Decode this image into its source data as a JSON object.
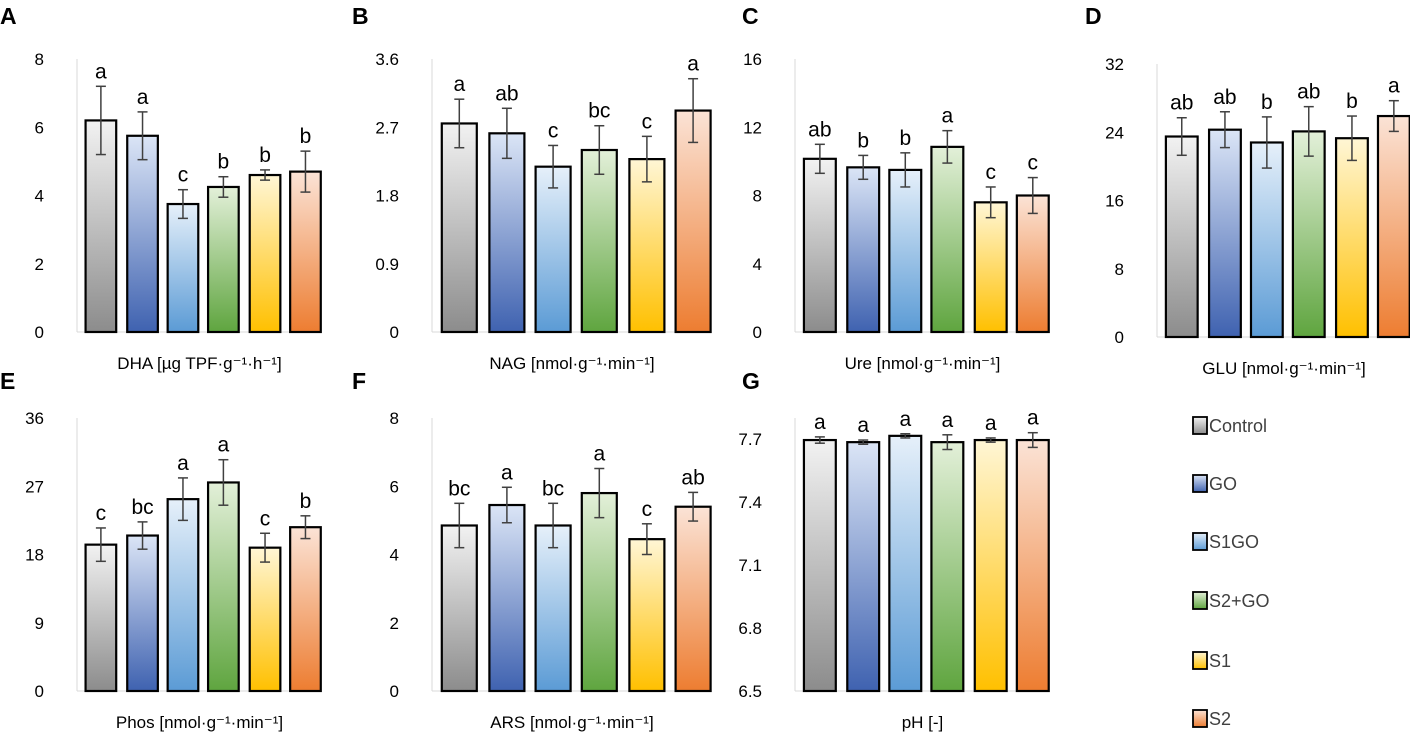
{
  "legend": {
    "items": [
      {
        "label": "Control",
        "gradient": [
          "#f2f2f2",
          "#8c8c8c"
        ]
      },
      {
        "label": "GO",
        "gradient": [
          "#dbe5f6",
          "#3f62b0"
        ]
      },
      {
        "label": "S1GO",
        "gradient": [
          "#e6f0fa",
          "#5b9bd5"
        ]
      },
      {
        "label": "S2+GO",
        "gradient": [
          "#e3f0d9",
          "#5fa53f"
        ]
      },
      {
        "label": "S1",
        "gradient": [
          "#fff6d5",
          "#ffc000"
        ]
      },
      {
        "label": "S2",
        "gradient": [
          "#fbe3d6",
          "#ed7d31"
        ]
      }
    ]
  },
  "chart_data": [
    {
      "panel": "A",
      "type": "bar",
      "xlabel": "DHA [µg TPF·g⁻¹·h⁻¹]",
      "categories": [
        "Control",
        "GO",
        "S1GO",
        "S2+GO",
        "S1",
        "S2"
      ],
      "ylim": [
        0,
        8
      ],
      "yticks": [
        "0",
        "2",
        "4",
        "6",
        "8"
      ],
      "values": [
        6.2,
        5.75,
        3.75,
        4.25,
        4.6,
        4.7
      ],
      "errors": [
        1.0,
        0.7,
        0.42,
        0.3,
        0.15,
        0.6
      ],
      "letters": [
        "a",
        "a",
        "c",
        "b",
        "b",
        "b"
      ]
    },
    {
      "panel": "B",
      "type": "bar",
      "xlabel": "NAG [nmol·g⁻¹·min⁻¹]",
      "categories": [
        "Control",
        "GO",
        "S1GO",
        "S2+GO",
        "S1",
        "S2"
      ],
      "ylim": [
        0,
        3.6
      ],
      "yticks": [
        "0",
        "0.9",
        "1.8",
        "2.7",
        "3.6"
      ],
      "values": [
        2.75,
        2.62,
        2.18,
        2.4,
        2.28,
        2.92
      ],
      "errors": [
        0.32,
        0.33,
        0.28,
        0.32,
        0.3,
        0.42
      ],
      "letters": [
        "a",
        "ab",
        "c",
        "bc",
        "c",
        "a"
      ]
    },
    {
      "panel": "C",
      "type": "bar",
      "xlabel": "Ure [nmol·g⁻¹·min⁻¹]",
      "categories": [
        "Control",
        "GO",
        "S1GO",
        "S2+GO",
        "S1",
        "S2"
      ],
      "ylim": [
        0,
        16
      ],
      "yticks": [
        "0",
        "4",
        "8",
        "12",
        "16"
      ],
      "values": [
        10.15,
        9.65,
        9.5,
        10.85,
        7.6,
        8.0
      ],
      "errors": [
        0.85,
        0.7,
        1.0,
        0.95,
        0.9,
        1.05
      ],
      "letters": [
        "ab",
        "b",
        "b",
        "a",
        "c",
        "c"
      ]
    },
    {
      "panel": "D",
      "type": "bar",
      "xlabel": "GLU [nmol·g⁻¹·min⁻¹]",
      "categories": [
        "Control",
        "GO",
        "S1GO",
        "S2+GO",
        "S1",
        "S2"
      ],
      "ylim": [
        0,
        32
      ],
      "yticks": [
        "0",
        "8",
        "16",
        "24",
        "32"
      ],
      "values": [
        23.5,
        24.3,
        22.8,
        24.1,
        23.3,
        25.9
      ],
      "errors": [
        2.2,
        2.1,
        3.0,
        2.9,
        2.6,
        1.8
      ],
      "letters": [
        "ab",
        "ab",
        "b",
        "ab",
        "b",
        "a"
      ]
    },
    {
      "panel": "E",
      "type": "bar",
      "xlabel": "Phos [nmol·g⁻¹·min⁻¹]",
      "categories": [
        "Control",
        "GO",
        "S1GO",
        "S2+GO",
        "S1",
        "S2"
      ],
      "ylim": [
        0,
        36
      ],
      "yticks": [
        "0",
        "9",
        "18",
        "27",
        "36"
      ],
      "values": [
        19.3,
        20.5,
        25.3,
        27.5,
        18.9,
        21.6
      ],
      "errors": [
        2.2,
        1.8,
        2.8,
        3.0,
        1.9,
        1.5
      ],
      "letters": [
        "c",
        "bc",
        "a",
        "a",
        "c",
        "b"
      ]
    },
    {
      "panel": "F",
      "type": "bar",
      "xlabel": "ARS [nmol·g⁻¹·min⁻¹]",
      "categories": [
        "Control",
        "GO",
        "S1GO",
        "S2+GO",
        "S1",
        "S2"
      ],
      "ylim": [
        0,
        8
      ],
      "yticks": [
        "0",
        "2",
        "4",
        "6",
        "8"
      ],
      "values": [
        4.85,
        5.45,
        4.85,
        5.8,
        4.45,
        5.4
      ],
      "errors": [
        0.65,
        0.52,
        0.65,
        0.72,
        0.45,
        0.42
      ],
      "letters": [
        "bc",
        "a",
        "bc",
        "a",
        "c",
        "ab"
      ]
    },
    {
      "panel": "G",
      "type": "bar",
      "xlabel": "pH [-]",
      "categories": [
        "Control",
        "GO",
        "S1GO",
        "S2+GO",
        "S1",
        "S2"
      ],
      "ylim": [
        6.5,
        7.8
      ],
      "yticks": [
        "6.5",
        "6.8",
        "7.1",
        "7.4",
        "7.7"
      ],
      "values": [
        7.695,
        7.685,
        7.715,
        7.685,
        7.695,
        7.695
      ],
      "errors": [
        0.015,
        0.01,
        0.01,
        0.035,
        0.01,
        0.035
      ],
      "letters": [
        "a",
        "a",
        "a",
        "a",
        "a",
        "a"
      ]
    }
  ]
}
